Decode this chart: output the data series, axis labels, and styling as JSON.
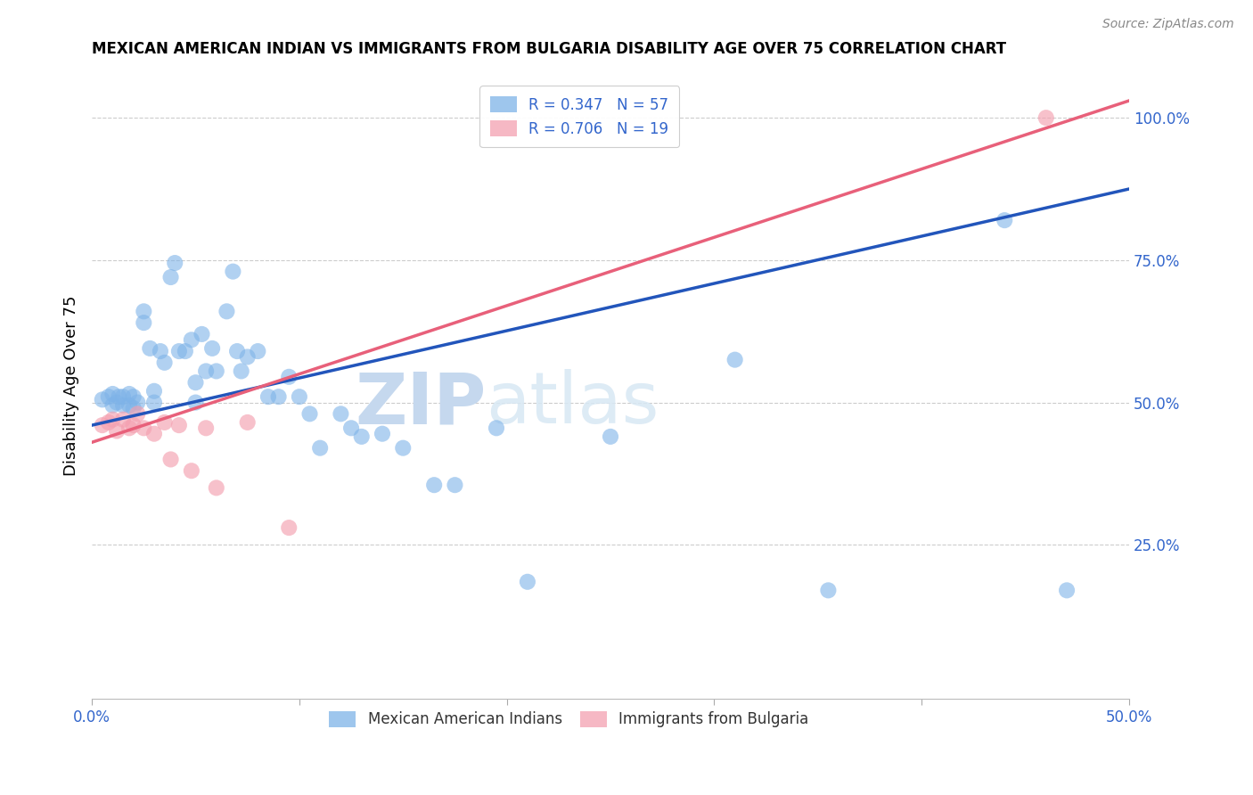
{
  "title": "MEXICAN AMERICAN INDIAN VS IMMIGRANTS FROM BULGARIA DISABILITY AGE OVER 75 CORRELATION CHART",
  "source": "Source: ZipAtlas.com",
  "ylabel": "Disability Age Over 75",
  "xlim": [
    0.0,
    0.5
  ],
  "ylim": [
    -0.02,
    1.08
  ],
  "xticks": [
    0.0,
    0.1,
    0.2,
    0.3,
    0.4,
    0.5
  ],
  "xticklabels": [
    "0.0%",
    "",
    "",
    "",
    "",
    "50.0%"
  ],
  "yticks_right": [
    0.25,
    0.5,
    0.75,
    1.0
  ],
  "ytick_labels_right": [
    "25.0%",
    "50.0%",
    "75.0%",
    "100.0%"
  ],
  "legend1_label": "R = 0.347   N = 57",
  "legend2_label": "R = 0.706   N = 19",
  "blue_color": "#7EB3E8",
  "pink_color": "#F4A0B0",
  "blue_line_color": "#2255BB",
  "pink_line_color": "#E8607A",
  "watermark": "ZIPatlas",
  "watermark_color": "#C5D8EE",
  "blue_scatter_x": [
    0.005,
    0.008,
    0.01,
    0.01,
    0.012,
    0.013,
    0.015,
    0.015,
    0.018,
    0.018,
    0.02,
    0.02,
    0.022,
    0.025,
    0.025,
    0.028,
    0.03,
    0.03,
    0.033,
    0.035,
    0.038,
    0.04,
    0.042,
    0.045,
    0.048,
    0.05,
    0.05,
    0.053,
    0.055,
    0.058,
    0.06,
    0.065,
    0.068,
    0.07,
    0.072,
    0.075,
    0.08,
    0.085,
    0.09,
    0.095,
    0.1,
    0.105,
    0.11,
    0.12,
    0.125,
    0.13,
    0.14,
    0.15,
    0.165,
    0.175,
    0.195,
    0.21,
    0.25,
    0.31,
    0.355,
    0.44,
    0.47
  ],
  "blue_scatter_y": [
    0.505,
    0.51,
    0.495,
    0.515,
    0.5,
    0.51,
    0.495,
    0.51,
    0.495,
    0.515,
    0.49,
    0.51,
    0.5,
    0.64,
    0.66,
    0.595,
    0.5,
    0.52,
    0.59,
    0.57,
    0.72,
    0.745,
    0.59,
    0.59,
    0.61,
    0.5,
    0.535,
    0.62,
    0.555,
    0.595,
    0.555,
    0.66,
    0.73,
    0.59,
    0.555,
    0.58,
    0.59,
    0.51,
    0.51,
    0.545,
    0.51,
    0.48,
    0.42,
    0.48,
    0.455,
    0.44,
    0.445,
    0.42,
    0.355,
    0.355,
    0.455,
    0.185,
    0.44,
    0.575,
    0.17,
    0.82,
    0.17
  ],
  "pink_scatter_x": [
    0.005,
    0.008,
    0.01,
    0.012,
    0.015,
    0.018,
    0.02,
    0.022,
    0.025,
    0.03,
    0.035,
    0.038,
    0.042,
    0.048,
    0.055,
    0.06,
    0.075,
    0.095,
    0.46
  ],
  "pink_scatter_y": [
    0.46,
    0.465,
    0.47,
    0.45,
    0.47,
    0.455,
    0.46,
    0.48,
    0.455,
    0.445,
    0.465,
    0.4,
    0.46,
    0.38,
    0.455,
    0.35,
    0.465,
    0.28,
    1.0
  ],
  "blue_line_x": [
    0.0,
    0.5
  ],
  "blue_line_y": [
    0.46,
    0.875
  ],
  "pink_line_x": [
    0.0,
    0.5
  ],
  "pink_line_y": [
    0.43,
    1.03
  ]
}
